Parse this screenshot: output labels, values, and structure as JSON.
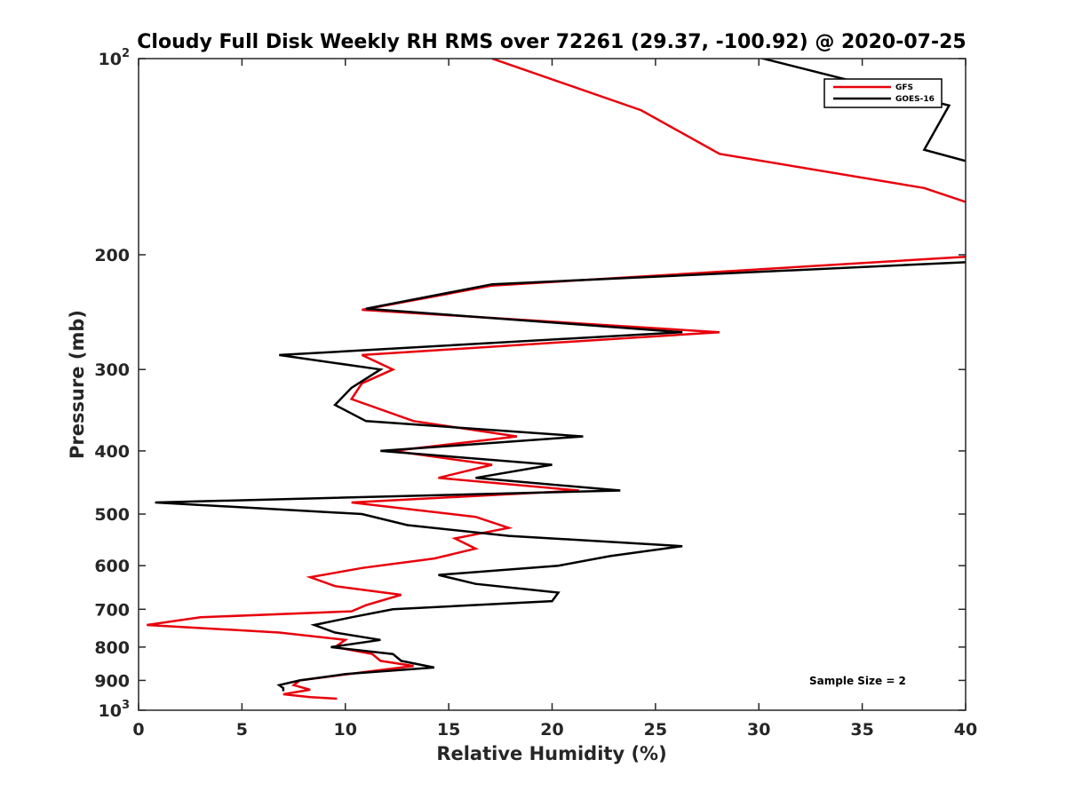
{
  "chart_data": {
    "type": "line",
    "title": "Cloudy Full Disk Weekly RH RMS over 72261 (29.37, -100.92) @ 2020-07-25",
    "xlabel": "Relative Humidity (%)",
    "ylabel": "Pressure (mb)",
    "xlim": [
      0,
      40
    ],
    "ylim": [
      100,
      1000
    ],
    "y_scale": "log",
    "y_reversed": true,
    "xticks": [
      0,
      5,
      10,
      15,
      20,
      25,
      30,
      35,
      40
    ],
    "yticks": [
      {
        "value": 100,
        "label": "10",
        "sup": "2"
      },
      {
        "value": 200,
        "label": "200"
      },
      {
        "value": 300,
        "label": "300"
      },
      {
        "value": 400,
        "label": "400"
      },
      {
        "value": 500,
        "label": "500"
      },
      {
        "value": 600,
        "label": "600"
      },
      {
        "value": 700,
        "label": "700"
      },
      {
        "value": 800,
        "label": "800"
      },
      {
        "value": 900,
        "label": "900"
      },
      {
        "value": 1000,
        "label": "10",
        "sup": "3"
      }
    ],
    "grid": false,
    "legend_position": "top-right",
    "annotation": "Sample Size = 2",
    "series": [
      {
        "name": "GFS",
        "color": "#e8000b",
        "points": [
          [
            17.1,
            100
          ],
          [
            24.3,
            120
          ],
          [
            28.1,
            140
          ],
          [
            38.0,
            158
          ],
          [
            40.5,
            168
          ],
          [
            40.5,
            201
          ],
          [
            17.1,
            223
          ],
          [
            10.8,
            243
          ],
          [
            28.1,
            263
          ],
          [
            10.8,
            285
          ],
          [
            12.3,
            300
          ],
          [
            10.8,
            315
          ],
          [
            10.3,
            333
          ],
          [
            13.3,
            360
          ],
          [
            18.3,
            380
          ],
          [
            12.3,
            400
          ],
          [
            17.1,
            420
          ],
          [
            14.5,
            440
          ],
          [
            21.3,
            460
          ],
          [
            10.3,
            480
          ],
          [
            16.3,
            505
          ],
          [
            17.9,
            525
          ],
          [
            15.3,
            545
          ],
          [
            16.3,
            565
          ],
          [
            14.3,
            585
          ],
          [
            10.8,
            605
          ],
          [
            8.3,
            625
          ],
          [
            9.5,
            645
          ],
          [
            12.7,
            665
          ],
          [
            11.0,
            690
          ],
          [
            10.3,
            705
          ],
          [
            3.0,
            720
          ],
          [
            0.4,
            740
          ],
          [
            6.8,
            760
          ],
          [
            10.0,
            780
          ],
          [
            9.5,
            800
          ],
          [
            11.3,
            820
          ],
          [
            11.7,
            840
          ],
          [
            13.3,
            855
          ],
          [
            10.8,
            875
          ],
          [
            7.8,
            900
          ],
          [
            7.5,
            915
          ],
          [
            8.3,
            930
          ],
          [
            7.0,
            945
          ],
          [
            8.3,
            955
          ],
          [
            9.6,
            960
          ]
        ]
      },
      {
        "name": "GOES-16",
        "color": "#000000",
        "points": [
          [
            28.0,
            96
          ],
          [
            39.2,
            118
          ],
          [
            38.0,
            138
          ],
          [
            40.5,
            145
          ],
          [
            40.5,
            205
          ],
          [
            17.1,
            222
          ],
          [
            11.0,
            242
          ],
          [
            26.3,
            263
          ],
          [
            6.8,
            285
          ],
          [
            11.7,
            300
          ],
          [
            10.3,
            320
          ],
          [
            9.5,
            340
          ],
          [
            11.0,
            360
          ],
          [
            21.5,
            380
          ],
          [
            11.7,
            400
          ],
          [
            20.0,
            420
          ],
          [
            16.3,
            440
          ],
          [
            23.3,
            460
          ],
          [
            0.8,
            480
          ],
          [
            10.8,
            500
          ],
          [
            13.0,
            520
          ],
          [
            17.9,
            540
          ],
          [
            26.3,
            560
          ],
          [
            22.8,
            580
          ],
          [
            20.3,
            600
          ],
          [
            14.5,
            620
          ],
          [
            16.3,
            640
          ],
          [
            20.3,
            660
          ],
          [
            20.0,
            680
          ],
          [
            12.3,
            700
          ],
          [
            10.3,
            720
          ],
          [
            8.5,
            740
          ],
          [
            9.5,
            760
          ],
          [
            11.7,
            780
          ],
          [
            9.3,
            800
          ],
          [
            12.3,
            820
          ],
          [
            12.7,
            840
          ],
          [
            14.3,
            860
          ],
          [
            10.0,
            880
          ],
          [
            7.8,
            900
          ],
          [
            6.8,
            915
          ],
          [
            7.0,
            925
          ],
          [
            7.0,
            935
          ]
        ]
      }
    ]
  }
}
